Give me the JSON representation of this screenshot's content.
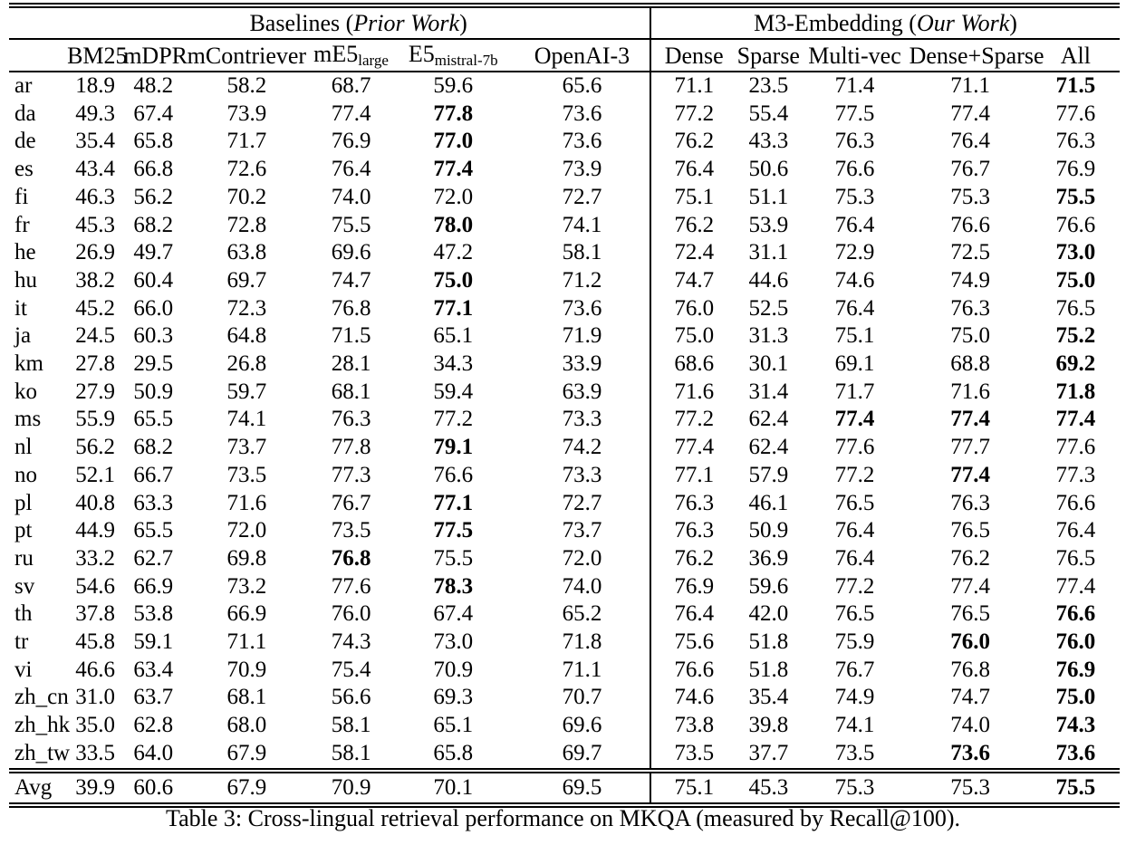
{
  "page": {
    "background": "#ffffff",
    "text_color": "#000000"
  },
  "caption": "Table 3: Cross-lingual retrieval performance on MKQA (measured by Recall@100).",
  "table": {
    "groups": [
      {
        "prefix": "Baselines (",
        "italic": "Prior Work",
        "suffix": ")",
        "span": 6
      },
      {
        "prefix": "M3-Embedding (",
        "italic": "Our Work",
        "suffix": ")",
        "span": 5
      }
    ],
    "columns": [
      {
        "label": "BM25",
        "sub": ""
      },
      {
        "label": "mDPR",
        "sub": ""
      },
      {
        "label": "mContriever",
        "sub": ""
      },
      {
        "label": "mE5",
        "sub": "large"
      },
      {
        "label": "E5",
        "sub": "mistral-7b"
      },
      {
        "label": "OpenAI-3",
        "sub": ""
      },
      {
        "label": "Dense",
        "sub": ""
      },
      {
        "label": "Sparse",
        "sub": ""
      },
      {
        "label": "Multi-vec",
        "sub": ""
      },
      {
        "label": "Dense+Sparse",
        "sub": ""
      },
      {
        "label": "All",
        "sub": ""
      }
    ],
    "rows": [
      {
        "lang": "ar",
        "values": [
          "18.9",
          "48.2",
          "58.2",
          "68.7",
          "59.6",
          "65.6",
          "71.1",
          "23.5",
          "71.4",
          "71.1",
          "71.5"
        ],
        "bold": [
          10
        ]
      },
      {
        "lang": "da",
        "values": [
          "49.3",
          "67.4",
          "73.9",
          "77.4",
          "77.8",
          "73.6",
          "77.2",
          "55.4",
          "77.5",
          "77.4",
          "77.6"
        ],
        "bold": [
          4
        ]
      },
      {
        "lang": "de",
        "values": [
          "35.4",
          "65.8",
          "71.7",
          "76.9",
          "77.0",
          "73.6",
          "76.2",
          "43.3",
          "76.3",
          "76.4",
          "76.3"
        ],
        "bold": [
          4
        ]
      },
      {
        "lang": "es",
        "values": [
          "43.4",
          "66.8",
          "72.6",
          "76.4",
          "77.4",
          "73.9",
          "76.4",
          "50.6",
          "76.6",
          "76.7",
          "76.9"
        ],
        "bold": [
          4
        ]
      },
      {
        "lang": "fi",
        "values": [
          "46.3",
          "56.2",
          "70.2",
          "74.0",
          "72.0",
          "72.7",
          "75.1",
          "51.1",
          "75.3",
          "75.3",
          "75.5"
        ],
        "bold": [
          10
        ]
      },
      {
        "lang": "fr",
        "values": [
          "45.3",
          "68.2",
          "72.8",
          "75.5",
          "78.0",
          "74.1",
          "76.2",
          "53.9",
          "76.4",
          "76.6",
          "76.6"
        ],
        "bold": [
          4
        ]
      },
      {
        "lang": "he",
        "values": [
          "26.9",
          "49.7",
          "63.8",
          "69.6",
          "47.2",
          "58.1",
          "72.4",
          "31.1",
          "72.9",
          "72.5",
          "73.0"
        ],
        "bold": [
          10
        ]
      },
      {
        "lang": "hu",
        "values": [
          "38.2",
          "60.4",
          "69.7",
          "74.7",
          "75.0",
          "71.2",
          "74.7",
          "44.6",
          "74.6",
          "74.9",
          "75.0"
        ],
        "bold": [
          4,
          10
        ]
      },
      {
        "lang": "it",
        "values": [
          "45.2",
          "66.0",
          "72.3",
          "76.8",
          "77.1",
          "73.6",
          "76.0",
          "52.5",
          "76.4",
          "76.3",
          "76.5"
        ],
        "bold": [
          4
        ]
      },
      {
        "lang": "ja",
        "values": [
          "24.5",
          "60.3",
          "64.8",
          "71.5",
          "65.1",
          "71.9",
          "75.0",
          "31.3",
          "75.1",
          "75.0",
          "75.2"
        ],
        "bold": [
          10
        ]
      },
      {
        "lang": "km",
        "values": [
          "27.8",
          "29.5",
          "26.8",
          "28.1",
          "34.3",
          "33.9",
          "68.6",
          "30.1",
          "69.1",
          "68.8",
          "69.2"
        ],
        "bold": [
          10
        ]
      },
      {
        "lang": "ko",
        "values": [
          "27.9",
          "50.9",
          "59.7",
          "68.1",
          "59.4",
          "63.9",
          "71.6",
          "31.4",
          "71.7",
          "71.6",
          "71.8"
        ],
        "bold": [
          10
        ]
      },
      {
        "lang": "ms",
        "values": [
          "55.9",
          "65.5",
          "74.1",
          "76.3",
          "77.2",
          "73.3",
          "77.2",
          "62.4",
          "77.4",
          "77.4",
          "77.4"
        ],
        "bold": [
          8,
          9,
          10
        ]
      },
      {
        "lang": "nl",
        "values": [
          "56.2",
          "68.2",
          "73.7",
          "77.8",
          "79.1",
          "74.2",
          "77.4",
          "62.4",
          "77.6",
          "77.7",
          "77.6"
        ],
        "bold": [
          4
        ]
      },
      {
        "lang": "no",
        "values": [
          "52.1",
          "66.7",
          "73.5",
          "77.3",
          "76.6",
          "73.3",
          "77.1",
          "57.9",
          "77.2",
          "77.4",
          "77.3"
        ],
        "bold": [
          9
        ]
      },
      {
        "lang": "pl",
        "values": [
          "40.8",
          "63.3",
          "71.6",
          "76.7",
          "77.1",
          "72.7",
          "76.3",
          "46.1",
          "76.5",
          "76.3",
          "76.6"
        ],
        "bold": [
          4
        ]
      },
      {
        "lang": "pt",
        "values": [
          "44.9",
          "65.5",
          "72.0",
          "73.5",
          "77.5",
          "73.7",
          "76.3",
          "50.9",
          "76.4",
          "76.5",
          "76.4"
        ],
        "bold": [
          4
        ]
      },
      {
        "lang": "ru",
        "values": [
          "33.2",
          "62.7",
          "69.8",
          "76.8",
          "75.5",
          "72.0",
          "76.2",
          "36.9",
          "76.4",
          "76.2",
          "76.5"
        ],
        "bold": [
          3
        ]
      },
      {
        "lang": "sv",
        "values": [
          "54.6",
          "66.9",
          "73.2",
          "77.6",
          "78.3",
          "74.0",
          "76.9",
          "59.6",
          "77.2",
          "77.4",
          "77.4"
        ],
        "bold": [
          4
        ]
      },
      {
        "lang": "th",
        "values": [
          "37.8",
          "53.8",
          "66.9",
          "76.0",
          "67.4",
          "65.2",
          "76.4",
          "42.0",
          "76.5",
          "76.5",
          "76.6"
        ],
        "bold": [
          10
        ]
      },
      {
        "lang": "tr",
        "values": [
          "45.8",
          "59.1",
          "71.1",
          "74.3",
          "73.0",
          "71.8",
          "75.6",
          "51.8",
          "75.9",
          "76.0",
          "76.0"
        ],
        "bold": [
          9,
          10
        ]
      },
      {
        "lang": "vi",
        "values": [
          "46.6",
          "63.4",
          "70.9",
          "75.4",
          "70.9",
          "71.1",
          "76.6",
          "51.8",
          "76.7",
          "76.8",
          "76.9"
        ],
        "bold": [
          10
        ]
      },
      {
        "lang": "zh_cn",
        "values": [
          "31.0",
          "63.7",
          "68.1",
          "56.6",
          "69.3",
          "70.7",
          "74.6",
          "35.4",
          "74.9",
          "74.7",
          "75.0"
        ],
        "bold": [
          10
        ]
      },
      {
        "lang": "zh_hk",
        "values": [
          "35.0",
          "62.8",
          "68.0",
          "58.1",
          "65.1",
          "69.6",
          "73.8",
          "39.8",
          "74.1",
          "74.0",
          "74.3"
        ],
        "bold": [
          10
        ]
      },
      {
        "lang": "zh_tw",
        "values": [
          "33.5",
          "64.0",
          "67.9",
          "58.1",
          "65.8",
          "69.7",
          "73.5",
          "37.7",
          "73.5",
          "73.6",
          "73.6"
        ],
        "bold": [
          9,
          10
        ]
      }
    ],
    "avg_row": {
      "lang": "Avg",
      "values": [
        "39.9",
        "60.6",
        "67.9",
        "70.9",
        "70.1",
        "69.5",
        "75.1",
        "45.3",
        "75.3",
        "75.3",
        "75.5"
      ],
      "bold": [
        10
      ]
    }
  }
}
